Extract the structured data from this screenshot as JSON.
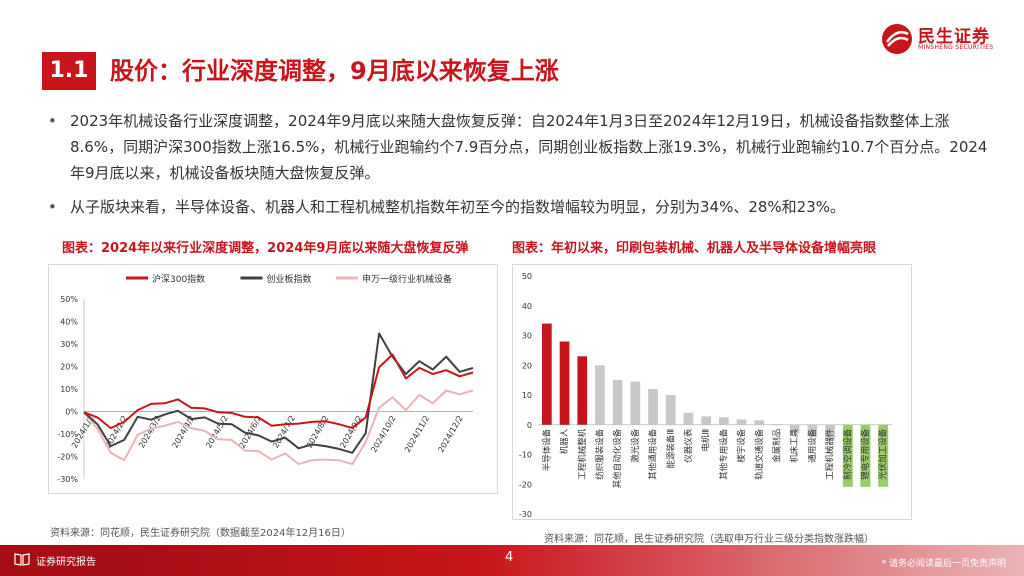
{
  "header": {
    "section_number": "1.1",
    "title": "股价：行业深度调整，9月底以来恢复上涨",
    "logo_text": "民生证券",
    "logo_en": "MINSHENG SECURITIES",
    "brand_color": "#c8151b"
  },
  "bullets": [
    "2023年机械设备行业深度调整，2024年9月底以来随大盘恢复反弹：自2024年1月3日至2024年12月19日，机械设备指数整体上涨8.6%，同期沪深300指数上涨16.5%，机械行业跑输约个7.9百分点，同期创业板指数上涨19.3%，机械行业跑输约10.7个百分点。2024年9月底以来，机械设备板块随大盘恢复反弹。",
    "从子版块来看，半导体设备、机器人和工程机械整机指数年初至今的指数增幅较为明显，分别为34%、28%和23%。"
  ],
  "figure1": {
    "title": "图表：2024年以来行业深度调整，2024年9月底以来随大盘恢复反弹",
    "source": "资料来源：同花顺，民生证券研究院（数据截至2024年12月16日）"
  },
  "figure2": {
    "title": "图表：年初以来，印刷包装机械、机器人及半导体设备增幅亮眼",
    "source": "资料来源：同花顺，民生证券研究院（选取申万行业三级分类指数涨跌幅）"
  },
  "chart_data": [
    {
      "type": "line",
      "legend": [
        "沪深300指数",
        "创业板指数",
        "申万一级行业机械设备"
      ],
      "legend_placement": "top",
      "colors": [
        "#c8151b",
        "#404040",
        "#e8b4b4"
      ],
      "x_ticks": [
        "2024/1/2",
        "2024/2/2",
        "2024/3/2",
        "2024/4/2",
        "2024/5/2",
        "2024/6/2",
        "2024/7/2",
        "2024/8/2",
        "2024/9/2",
        "2024/10/2",
        "2024/11/2",
        "2024/12/2"
      ],
      "y_ticks": [
        "50%",
        "40%",
        "30%",
        "20%",
        "10%",
        "0%",
        "-10%",
        "-20%",
        "-30%"
      ],
      "ylim": [
        -30,
        50
      ],
      "grid": false,
      "series": [
        {
          "name": "沪深300指数",
          "values": [
            0,
            -3,
            -7,
            -5,
            1,
            3,
            4,
            5,
            2,
            1,
            0,
            -1,
            -2,
            -3,
            -6,
            -6,
            -5,
            -5,
            -4,
            -6,
            -7,
            -3,
            20,
            25,
            15,
            19,
            17,
            18,
            16,
            17
          ]
        },
        {
          "name": "创业板指数",
          "values": [
            0,
            -6,
            -15,
            -13,
            -2,
            -4,
            -1,
            0,
            -3,
            -3,
            -5,
            -6,
            -9,
            -11,
            -13,
            -12,
            -16,
            -15,
            -15,
            -17,
            -18,
            -10,
            35,
            24,
            17,
            22,
            19,
            24,
            18,
            19
          ]
        },
        {
          "name": "申万一级行业机械设备",
          "values": [
            0,
            -8,
            -18,
            -22,
            -10,
            -8,
            -6,
            -5,
            -7,
            -9,
            -12,
            -13,
            -17,
            -18,
            -21,
            -19,
            -23,
            -22,
            -21,
            -22,
            -23,
            -14,
            2,
            6,
            1,
            7,
            4,
            9,
            8,
            9
          ]
        }
      ]
    },
    {
      "type": "bar",
      "categories": [
        "半导体设备",
        "机器人",
        "工程机械整机",
        "纺织服装设备",
        "其他自动化设备",
        "激光设备",
        "其他通用设备",
        "能源装备Ⅲ",
        "仪器仪表",
        "电机Ⅲ",
        "其他专用设备",
        "楼宇设备",
        "轨道交通设备",
        "金属制品",
        "机床工具",
        "通用设备",
        "工程机械器件",
        "制冷空调设备",
        "锂电专用设备",
        "光伏加工设备"
      ],
      "values": [
        34,
        28,
        23,
        20,
        15,
        14.5,
        12,
        10,
        4,
        2.8,
        2.5,
        1.8,
        1.5,
        0.3,
        -3,
        -4,
        -5,
        -6,
        -8,
        -17
      ],
      "y_ticks": [
        "50",
        "40",
        "30",
        "20",
        "10",
        "0",
        "-10",
        "-20",
        "-30"
      ],
      "ylim": [
        -30,
        50
      ],
      "colors": {
        "top": "#c8151b",
        "neutral": "#c8c8c8",
        "bottom": "#99cc66"
      },
      "grid": false
    }
  ],
  "footer": {
    "label": "证券研究报告",
    "page": "4",
    "disclaimer": "* 请务必阅读最后一页免责声明"
  }
}
